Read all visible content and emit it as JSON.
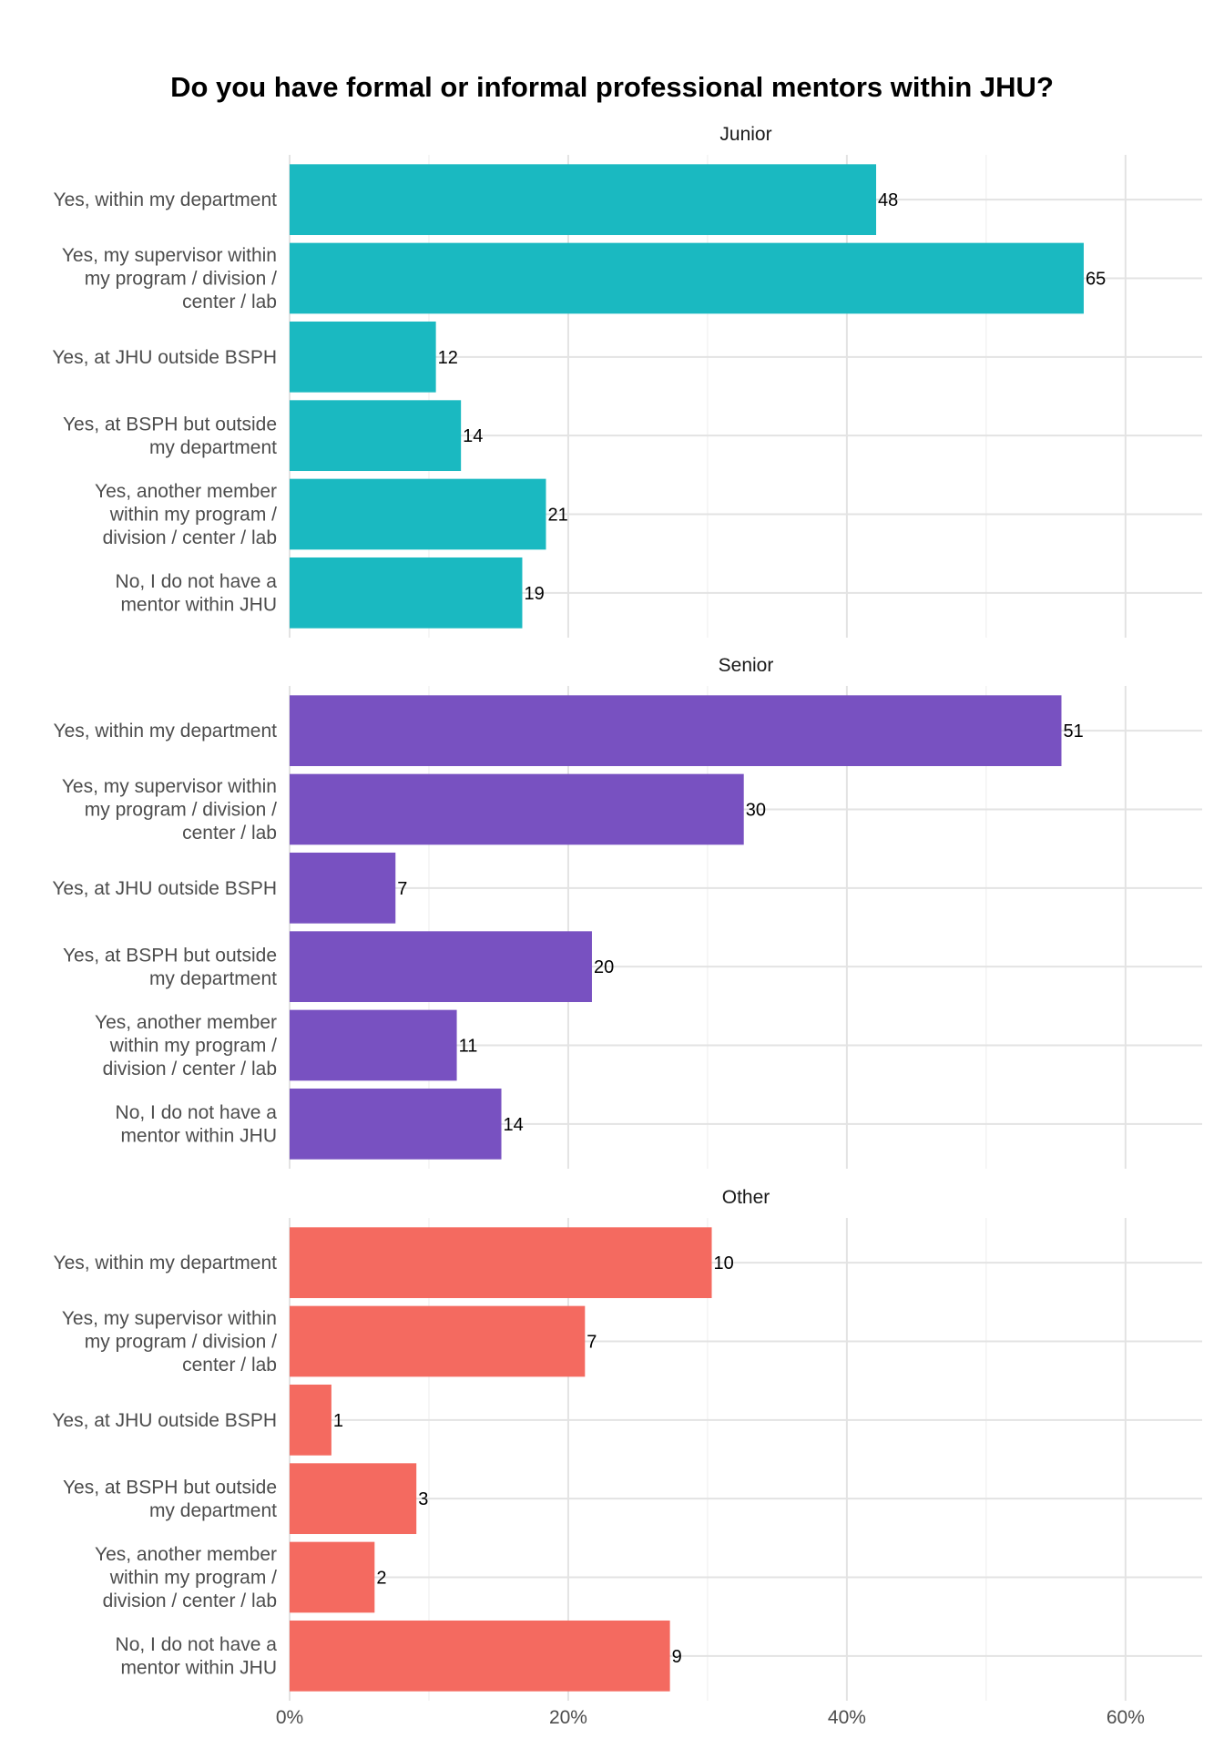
{
  "chart_data": {
    "type": "bar",
    "orientation": "horizontal",
    "title": "Do you have formal or informal professional mentors within JHU?",
    "categories": [
      [
        "Yes, within my department"
      ],
      [
        "Yes, my supervisor within",
        "my program / division /",
        "center / lab"
      ],
      [
        "Yes, at JHU outside BSPH"
      ],
      [
        "Yes, at BSPH but outside",
        "my department"
      ],
      [
        "Yes, another member",
        "within my program /",
        "division / center / lab"
      ],
      [
        "No, I do not have a",
        "mentor within JHU"
      ]
    ],
    "x_ticks": [
      "0%",
      "20%",
      "40%",
      "60%"
    ],
    "x_tick_values": [
      0,
      20,
      40,
      60
    ],
    "xlim": [
      0,
      65.5
    ],
    "grid": true,
    "panels": [
      {
        "name": "Junior",
        "color": "#1AB9C1",
        "counts": [
          48,
          65,
          12,
          14,
          21,
          19
        ],
        "percent": [
          42.1,
          57.0,
          10.5,
          12.3,
          18.4,
          16.7
        ]
      },
      {
        "name": "Senior",
        "color": "#7851C1",
        "counts": [
          51,
          30,
          7,
          20,
          11,
          14
        ],
        "percent": [
          55.4,
          32.6,
          7.6,
          21.7,
          12.0,
          15.2
        ]
      },
      {
        "name": "Other",
        "color": "#F46A60",
        "counts": [
          10,
          7,
          1,
          3,
          2,
          9
        ],
        "percent": [
          30.3,
          21.2,
          3.0,
          9.1,
          6.1,
          27.3
        ]
      }
    ]
  }
}
